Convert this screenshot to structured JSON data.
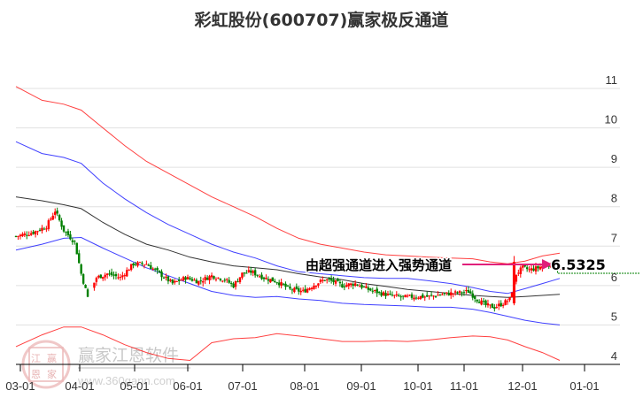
{
  "chart_data": {
    "type": "candlestick",
    "title": "彩虹股份(600707)赢家极反通道",
    "xlabel": "",
    "ylabel": "",
    "ylim": [
      4,
      11.3
    ],
    "y_ticks": [
      4,
      5,
      6,
      7,
      8,
      9,
      10,
      11
    ],
    "x_ticks": [
      "03-01",
      "04-01",
      "05-01",
      "06-01",
      "07-01",
      "08-01",
      "09-01",
      "10-01",
      "11-01",
      "12-01",
      "01-01"
    ],
    "grid": true,
    "last_price": 6.5325,
    "annotation": "由超强通道进入强势通道",
    "bands": {
      "outer_upper": {
        "color": "#ff0000",
        "points": [
          [
            0,
            11.05
          ],
          [
            12,
            10.7
          ],
          [
            22,
            10.6
          ],
          [
            30,
            10.45
          ],
          [
            40,
            10.0
          ],
          [
            50,
            9.55
          ],
          [
            60,
            9.15
          ],
          [
            70,
            8.85
          ],
          [
            80,
            8.55
          ],
          [
            90,
            8.25
          ],
          [
            100,
            8.0
          ],
          [
            110,
            7.75
          ],
          [
            120,
            7.45
          ],
          [
            130,
            7.2
          ],
          [
            140,
            7.05
          ],
          [
            150,
            6.95
          ],
          [
            160,
            6.85
          ],
          [
            170,
            6.78
          ],
          [
            180,
            6.75
          ],
          [
            190,
            6.72
          ],
          [
            200,
            6.7
          ],
          [
            210,
            6.68
          ],
          [
            218,
            6.6
          ],
          [
            226,
            6.55
          ],
          [
            234,
            6.62
          ],
          [
            242,
            6.75
          ],
          [
            250,
            6.82
          ]
        ]
      },
      "inner_upper": {
        "color": "#0000ff",
        "points": [
          [
            0,
            9.65
          ],
          [
            12,
            9.35
          ],
          [
            22,
            9.25
          ],
          [
            30,
            9.1
          ],
          [
            40,
            8.6
          ],
          [
            50,
            8.2
          ],
          [
            60,
            7.85
          ],
          [
            70,
            7.55
          ],
          [
            80,
            7.3
          ],
          [
            90,
            7.05
          ],
          [
            100,
            6.85
          ],
          [
            110,
            6.7
          ],
          [
            120,
            6.5
          ],
          [
            130,
            6.35
          ],
          [
            140,
            6.3
          ],
          [
            150,
            6.25
          ],
          [
            160,
            6.2
          ],
          [
            170,
            6.18
          ],
          [
            180,
            6.18
          ],
          [
            190,
            6.12
          ],
          [
            200,
            6.05
          ],
          [
            210,
            5.95
          ],
          [
            218,
            5.85
          ],
          [
            226,
            5.8
          ],
          [
            234,
            5.92
          ],
          [
            242,
            6.05
          ],
          [
            250,
            6.18
          ]
        ]
      },
      "middle": {
        "color": "#000000",
        "points": [
          [
            0,
            8.25
          ],
          [
            12,
            8.15
          ],
          [
            22,
            8.05
          ],
          [
            30,
            7.95
          ],
          [
            40,
            7.6
          ],
          [
            50,
            7.3
          ],
          [
            60,
            7.05
          ],
          [
            70,
            6.9
          ],
          [
            80,
            6.72
          ],
          [
            90,
            6.6
          ],
          [
            100,
            6.5
          ],
          [
            110,
            6.45
          ],
          [
            120,
            6.4
          ],
          [
            130,
            6.3
          ],
          [
            140,
            6.22
          ],
          [
            150,
            6.15
          ],
          [
            160,
            6.05
          ],
          [
            170,
            5.98
          ],
          [
            180,
            5.9
          ],
          [
            190,
            5.85
          ],
          [
            200,
            5.8
          ],
          [
            210,
            5.75
          ],
          [
            218,
            5.72
          ],
          [
            226,
            5.7
          ],
          [
            234,
            5.72
          ],
          [
            242,
            5.75
          ],
          [
            250,
            5.78
          ]
        ]
      },
      "inner_lower": {
        "color": "#0000ff",
        "points": [
          [
            0,
            6.9
          ],
          [
            12,
            7.05
          ],
          [
            22,
            7.2
          ],
          [
            30,
            7.22
          ],
          [
            40,
            6.95
          ],
          [
            50,
            6.7
          ],
          [
            60,
            6.45
          ],
          [
            70,
            6.25
          ],
          [
            80,
            6.05
          ],
          [
            90,
            5.85
          ],
          [
            100,
            5.75
          ],
          [
            110,
            5.7
          ],
          [
            120,
            5.72
          ],
          [
            130,
            5.66
          ],
          [
            140,
            5.62
          ],
          [
            150,
            5.55
          ],
          [
            160,
            5.52
          ],
          [
            170,
            5.5
          ],
          [
            180,
            5.48
          ],
          [
            190,
            5.45
          ],
          [
            200,
            5.45
          ],
          [
            210,
            5.4
          ],
          [
            218,
            5.32
          ],
          [
            226,
            5.22
          ],
          [
            234,
            5.12
          ],
          [
            242,
            5.05
          ],
          [
            250,
            5.0
          ]
        ]
      },
      "outer_lower": {
        "color": "#ff0000",
        "points": [
          [
            0,
            4.45
          ],
          [
            12,
            4.75
          ],
          [
            22,
            4.95
          ],
          [
            30,
            4.95
          ],
          [
            40,
            4.75
          ],
          [
            50,
            4.5
          ],
          [
            60,
            4.3
          ],
          [
            70,
            4.15
          ],
          [
            80,
            4.1
          ],
          [
            90,
            4.55
          ],
          [
            100,
            4.65
          ],
          [
            110,
            4.68
          ],
          [
            120,
            4.78
          ],
          [
            130,
            4.72
          ],
          [
            140,
            4.65
          ],
          [
            150,
            4.58
          ],
          [
            160,
            4.58
          ],
          [
            170,
            4.6
          ],
          [
            180,
            4.58
          ],
          [
            190,
            4.62
          ],
          [
            200,
            4.68
          ],
          [
            210,
            4.72
          ],
          [
            218,
            4.7
          ],
          [
            226,
            4.62
          ],
          [
            234,
            4.45
          ],
          [
            242,
            4.3
          ],
          [
            250,
            4.1
          ]
        ]
      }
    },
    "price_path": [
      [
        0,
        7.25
      ],
      [
        8,
        7.35
      ],
      [
        14,
        7.5
      ],
      [
        18,
        7.9
      ],
      [
        22,
        7.4
      ],
      [
        27,
        7.1
      ],
      [
        30,
        6.3
      ],
      [
        33,
        5.7
      ],
      [
        37,
        6.2
      ],
      [
        42,
        6.3
      ],
      [
        48,
        6.2
      ],
      [
        54,
        6.55
      ],
      [
        60,
        6.55
      ],
      [
        66,
        6.3
      ],
      [
        72,
        6.05
      ],
      [
        78,
        6.2
      ],
      [
        84,
        6.1
      ],
      [
        90,
        6.25
      ],
      [
        96,
        6.15
      ],
      [
        100,
        6.0
      ],
      [
        104,
        6.3
      ],
      [
        108,
        6.35
      ],
      [
        114,
        6.2
      ],
      [
        120,
        6.1
      ],
      [
        126,
        5.9
      ],
      [
        132,
        5.85
      ],
      [
        138,
        6.05
      ],
      [
        142,
        6.15
      ],
      [
        146,
        6.1
      ],
      [
        150,
        6.0
      ],
      [
        156,
        6.05
      ],
      [
        162,
        5.9
      ],
      [
        168,
        5.8
      ],
      [
        172,
        5.75
      ],
      [
        178,
        5.7
      ],
      [
        184,
        5.72
      ],
      [
        190,
        5.72
      ],
      [
        196,
        5.78
      ],
      [
        200,
        5.8
      ],
      [
        204,
        5.82
      ],
      [
        208,
        5.85
      ],
      [
        212,
        5.65
      ],
      [
        216,
        5.5
      ],
      [
        220,
        5.45
      ],
      [
        224,
        5.55
      ],
      [
        227,
        5.65
      ],
      [
        230,
        6.3
      ],
      [
        233,
        6.45
      ],
      [
        236,
        6.4
      ],
      [
        240,
        6.45
      ],
      [
        244,
        6.55
      ],
      [
        247,
        6.5
      ],
      [
        250,
        6.4
      ]
    ]
  },
  "axis": {
    "y_labels": [
      "11",
      "10",
      "9",
      "8",
      "7",
      "6",
      "5",
      "4"
    ],
    "x_labels": [
      "03-01",
      "04-01",
      "05-01",
      "06-01",
      "07-01",
      "08-01",
      "09-01",
      "10-01",
      "11-01",
      "12-01",
      "01-01"
    ]
  },
  "annotation": {
    "text": "由超强通道进入强势通道",
    "price_label": "6.5325",
    "arrow_color": "#e0207a"
  },
  "watermark": {
    "brand": "赢家江恩软件",
    "url": "www.360gann.com",
    "seal_chars": [
      "江",
      "赢",
      "恩",
      "家"
    ]
  },
  "colors": {
    "up": "#ff0000",
    "down": "#008000",
    "grid": "#e0e0e0",
    "price_line": "#008000"
  }
}
